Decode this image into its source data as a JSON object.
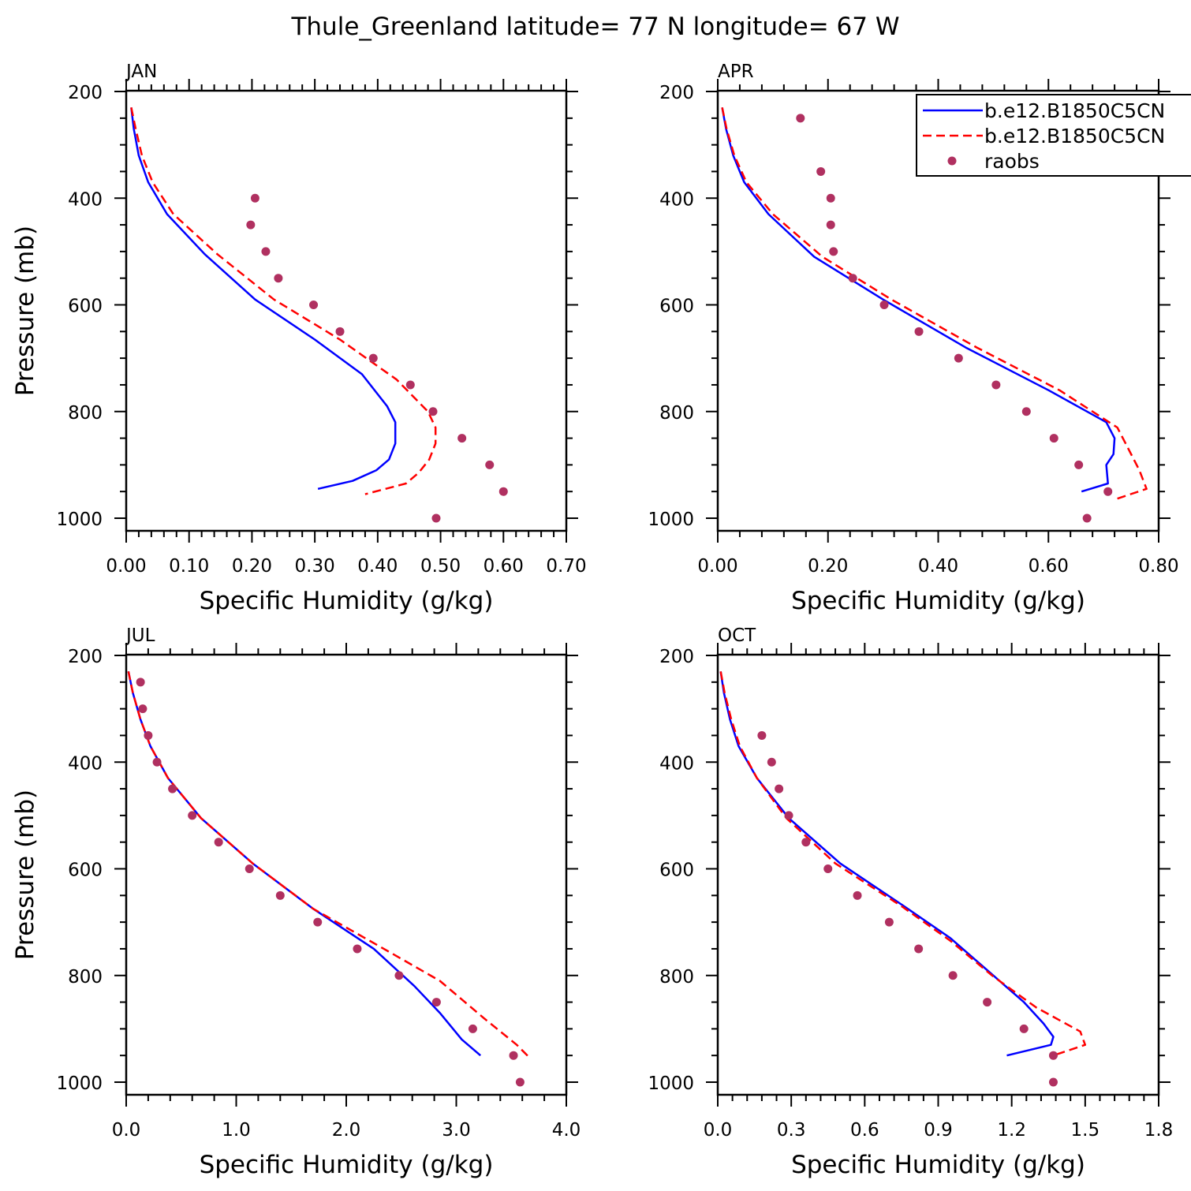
{
  "title": "Thule_Greenland  latitude= 77 N longitude= 67 W",
  "colors": {
    "model1": "#0000ff",
    "model2": "#ff0000",
    "raobs": "#b03060",
    "axes": "#000000"
  },
  "chart_data": [
    {
      "type": "line",
      "panel": "JAN",
      "xlabel": "Specific Humidity (g/kg)",
      "ylabel": "Pressure (mb)",
      "xlim": [
        0,
        0.7
      ],
      "ylim": [
        200,
        1000
      ],
      "y_inverted": true,
      "xticks": [
        0,
        0.1,
        0.2,
        0.3,
        0.4,
        0.5,
        0.6,
        0.7
      ],
      "xtick_labels": [
        "0.00",
        "0.10",
        "0.20",
        "0.30",
        "0.40",
        "0.50",
        "0.60",
        "0.70"
      ],
      "yticks": [
        200,
        400,
        600,
        800,
        1000
      ],
      "ytick_labels": [
        "200",
        "400",
        "600",
        "800",
        "1000"
      ],
      "series": [
        {
          "name": "b.e12.B1850C5CN",
          "style": "solid",
          "color": "#0000ff",
          "points": [
            [
              0.008,
              230
            ],
            [
              0.012,
              270
            ],
            [
              0.02,
              320
            ],
            [
              0.035,
              370
            ],
            [
              0.065,
              430
            ],
            [
              0.125,
              505
            ],
            [
              0.205,
              590
            ],
            [
              0.3,
              665
            ],
            [
              0.375,
              730
            ],
            [
              0.415,
              790
            ],
            [
              0.428,
              820
            ],
            [
              0.428,
              860
            ],
            [
              0.418,
              890
            ],
            [
              0.398,
              910
            ],
            [
              0.36,
              930
            ],
            [
              0.305,
              945
            ]
          ]
        },
        {
          "name": "b.e12.B1850C5CN",
          "style": "dashed",
          "color": "#ff0000",
          "points": [
            [
              0.008,
              230
            ],
            [
              0.015,
              270
            ],
            [
              0.025,
              320
            ],
            [
              0.042,
              370
            ],
            [
              0.075,
              430
            ],
            [
              0.145,
              505
            ],
            [
              0.235,
              590
            ],
            [
              0.34,
              665
            ],
            [
              0.43,
              740
            ],
            [
              0.48,
              800
            ],
            [
              0.492,
              830
            ],
            [
              0.492,
              860
            ],
            [
              0.482,
              890
            ],
            [
              0.465,
              915
            ],
            [
              0.445,
              935
            ],
            [
              0.38,
              955
            ]
          ]
        }
      ],
      "raobs": {
        "name": "raobs",
        "points": [
          [
            0.205,
            400
          ],
          [
            0.198,
            450
          ],
          [
            0.222,
            500
          ],
          [
            0.242,
            550
          ],
          [
            0.298,
            600
          ],
          [
            0.34,
            650
          ],
          [
            0.393,
            700
          ],
          [
            0.452,
            750
          ],
          [
            0.488,
            800
          ],
          [
            0.534,
            850
          ],
          [
            0.578,
            900
          ],
          [
            0.6,
            950
          ],
          [
            0.493,
            1000
          ]
        ]
      }
    },
    {
      "type": "line",
      "panel": "APR",
      "xlabel": "Specific Humidity (g/kg)",
      "ylabel": "",
      "xlim": [
        0,
        0.8
      ],
      "ylim": [
        200,
        1000
      ],
      "y_inverted": true,
      "xticks": [
        0,
        0.2,
        0.4,
        0.6,
        0.8
      ],
      "xtick_labels": [
        "0.00",
        "0.20",
        "0.40",
        "0.60",
        "0.80"
      ],
      "yticks": [
        200,
        400,
        600,
        800,
        1000
      ],
      "ytick_labels": [
        "200",
        "400",
        "600",
        "800",
        "1000"
      ],
      "legend": {
        "placement": "top-right",
        "entries": [
          "b.e12.B1850C5CN",
          "b.e12.B1850C5CN",
          "raobs"
        ]
      },
      "series": [
        {
          "name": "b.e12.B1850C5CN",
          "style": "solid",
          "color": "#0000ff",
          "points": [
            [
              0.008,
              230
            ],
            [
              0.015,
              270
            ],
            [
              0.028,
              320
            ],
            [
              0.048,
              370
            ],
            [
              0.092,
              430
            ],
            [
              0.175,
              510
            ],
            [
              0.3,
              590
            ],
            [
              0.45,
              680
            ],
            [
              0.6,
              760
            ],
            [
              0.705,
              820
            ],
            [
              0.72,
              850
            ],
            [
              0.718,
              880
            ],
            [
              0.705,
              900
            ],
            [
              0.708,
              935
            ],
            [
              0.66,
              950
            ]
          ]
        },
        {
          "name": "b.e12.B1850C5CN",
          "style": "dashed",
          "color": "#ff0000",
          "points": [
            [
              0.008,
              230
            ],
            [
              0.016,
              270
            ],
            [
              0.03,
              320
            ],
            [
              0.052,
              370
            ],
            [
              0.1,
              430
            ],
            [
              0.19,
              510
            ],
            [
              0.315,
              590
            ],
            [
              0.47,
              680
            ],
            [
              0.62,
              760
            ],
            [
              0.725,
              830
            ],
            [
              0.74,
              860
            ],
            [
              0.765,
              910
            ],
            [
              0.778,
              945
            ],
            [
              0.72,
              965
            ]
          ]
        }
      ],
      "raobs": {
        "name": "raobs",
        "points": [
          [
            0.15,
            250
          ],
          [
            0.187,
            350
          ],
          [
            0.205,
            400
          ],
          [
            0.205,
            450
          ],
          [
            0.21,
            500
          ],
          [
            0.245,
            550
          ],
          [
            0.302,
            600
          ],
          [
            0.365,
            650
          ],
          [
            0.437,
            700
          ],
          [
            0.505,
            750
          ],
          [
            0.56,
            800
          ],
          [
            0.61,
            850
          ],
          [
            0.655,
            900
          ],
          [
            0.708,
            950
          ],
          [
            0.67,
            1000
          ]
        ]
      }
    },
    {
      "type": "line",
      "panel": "JUL",
      "xlabel": "Specific Humidity (g/kg)",
      "ylabel": "Pressure (mb)",
      "xlim": [
        0,
        4.0
      ],
      "ylim": [
        200,
        1000
      ],
      "y_inverted": true,
      "xticks": [
        0,
        1,
        2,
        3,
        4
      ],
      "xtick_labels": [
        "0.0",
        "1.0",
        "2.0",
        "3.0",
        "4.0"
      ],
      "yticks": [
        200,
        400,
        600,
        800,
        1000
      ],
      "ytick_labels": [
        "200",
        "400",
        "600",
        "800",
        "1000"
      ],
      "series": [
        {
          "name": "b.e12.B1850C5CN",
          "style": "solid",
          "color": "#0000ff",
          "points": [
            [
              0.02,
              230
            ],
            [
              0.06,
              270
            ],
            [
              0.13,
              320
            ],
            [
              0.22,
              370
            ],
            [
              0.38,
              430
            ],
            [
              0.68,
              505
            ],
            [
              1.15,
              590
            ],
            [
              1.7,
              675
            ],
            [
              2.25,
              750
            ],
            [
              2.62,
              820
            ],
            [
              2.85,
              870
            ],
            [
              3.05,
              920
            ],
            [
              3.22,
              950
            ]
          ]
        },
        {
          "name": "b.e12.B1850C5CN",
          "style": "dashed",
          "color": "#ff0000",
          "points": [
            [
              0.02,
              230
            ],
            [
              0.06,
              270
            ],
            [
              0.13,
              320
            ],
            [
              0.22,
              370
            ],
            [
              0.38,
              430
            ],
            [
              0.68,
              505
            ],
            [
              1.15,
              590
            ],
            [
              1.7,
              675
            ],
            [
              2.3,
              745
            ],
            [
              2.85,
              810
            ],
            [
              3.25,
              880
            ],
            [
              3.55,
              930
            ],
            [
              3.67,
              955
            ]
          ]
        }
      ],
      "raobs": {
        "name": "raobs",
        "points": [
          [
            0.13,
            250
          ],
          [
            0.15,
            300
          ],
          [
            0.2,
            350
          ],
          [
            0.28,
            400
          ],
          [
            0.42,
            450
          ],
          [
            0.6,
            500
          ],
          [
            0.84,
            550
          ],
          [
            1.12,
            600
          ],
          [
            1.4,
            650
          ],
          [
            1.74,
            700
          ],
          [
            2.1,
            750
          ],
          [
            2.48,
            800
          ],
          [
            2.82,
            850
          ],
          [
            3.15,
            900
          ],
          [
            3.52,
            950
          ],
          [
            3.58,
            1000
          ]
        ]
      }
    },
    {
      "type": "line",
      "panel": "OCT",
      "xlabel": "Specific Humidity (g/kg)",
      "ylabel": "",
      "xlim": [
        0,
        1.8
      ],
      "ylim": [
        200,
        1000
      ],
      "y_inverted": true,
      "xticks": [
        0,
        0.3,
        0.6,
        0.9,
        1.2,
        1.5,
        1.8
      ],
      "xtick_labels": [
        "0.0",
        "0.3",
        "0.6",
        "0.9",
        "1.2",
        "1.5",
        "1.8"
      ],
      "yticks": [
        200,
        400,
        600,
        800,
        1000
      ],
      "ytick_labels": [
        "200",
        "400",
        "600",
        "800",
        "1000"
      ],
      "series": [
        {
          "name": "b.e12.B1850C5CN",
          "style": "solid",
          "color": "#0000ff",
          "points": [
            [
              0.012,
              230
            ],
            [
              0.025,
              270
            ],
            [
              0.05,
              320
            ],
            [
              0.085,
              370
            ],
            [
              0.16,
              430
            ],
            [
              0.29,
              505
            ],
            [
              0.5,
              590
            ],
            [
              0.76,
              670
            ],
            [
              0.95,
              730
            ],
            [
              1.1,
              790
            ],
            [
              1.25,
              850
            ],
            [
              1.33,
              890
            ],
            [
              1.37,
              915
            ],
            [
              1.36,
              930
            ],
            [
              1.18,
              950
            ]
          ]
        },
        {
          "name": "b.e12.B1850C5CN",
          "style": "dashed",
          "color": "#ff0000",
          "points": [
            [
              0.012,
              230
            ],
            [
              0.028,
              270
            ],
            [
              0.055,
              320
            ],
            [
              0.09,
              370
            ],
            [
              0.16,
              430
            ],
            [
              0.28,
              505
            ],
            [
              0.48,
              590
            ],
            [
              0.75,
              670
            ],
            [
              0.95,
              735
            ],
            [
              1.12,
              800
            ],
            [
              1.3,
              860
            ],
            [
              1.48,
              905
            ],
            [
              1.5,
              930
            ],
            [
              1.37,
              950
            ]
          ]
        }
      ],
      "raobs": {
        "name": "raobs",
        "points": [
          [
            0.18,
            350
          ],
          [
            0.22,
            400
          ],
          [
            0.25,
            450
          ],
          [
            0.29,
            500
          ],
          [
            0.36,
            550
          ],
          [
            0.45,
            600
          ],
          [
            0.57,
            650
          ],
          [
            0.7,
            700
          ],
          [
            0.82,
            750
          ],
          [
            0.96,
            800
          ],
          [
            1.1,
            850
          ],
          [
            1.25,
            900
          ],
          [
            1.37,
            950
          ],
          [
            1.37,
            1000
          ]
        ]
      }
    }
  ]
}
